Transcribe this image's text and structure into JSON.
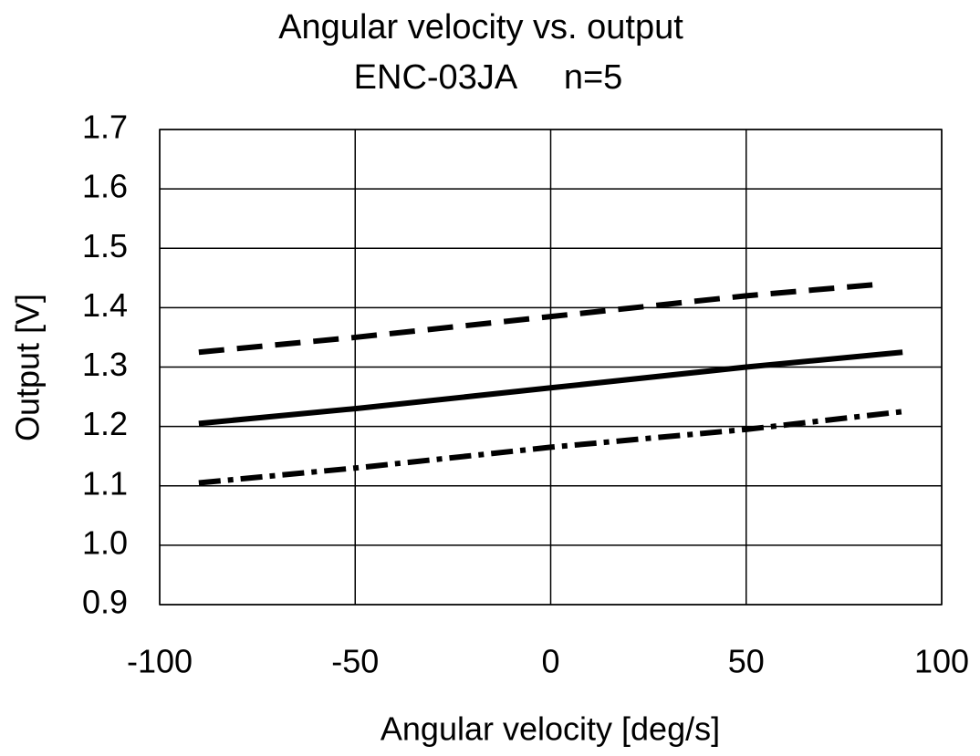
{
  "chart_data": {
    "type": "line",
    "title": "Angular velocity vs. output",
    "subtitle": "ENC-03JA     n=5",
    "x_label": "Angular velocity [deg/s]",
    "y_label": "Output [V]",
    "xlim": [
      -100,
      100
    ],
    "xticks": [
      -100,
      -50,
      0,
      50,
      100
    ],
    "ylim": [
      0.9,
      1.7
    ],
    "yticks": [
      0.9,
      {
        "value": 1,
        "label": "1.0"
      },
      1.1,
      1.2,
      1.3,
      1.4,
      1.5,
      1.6,
      1.7
    ],
    "grid": true,
    "series": [
      {
        "color": "#000000",
        "dash": "dashed",
        "x": [
          -90,
          -50,
          0,
          50,
          85
        ],
        "values": [
          1.325,
          1.35,
          1.385,
          1.42,
          1.44
        ]
      },
      {
        "color": "#000000",
        "dash": "solid",
        "x": [
          -90,
          -50,
          0,
          50,
          90
        ],
        "values": [
          1.205,
          1.23,
          1.265,
          1.3,
          1.325
        ]
      },
      {
        "color": "#000000",
        "dash": "dashdot",
        "x": [
          -90,
          -50,
          0,
          50,
          90
        ],
        "values": [
          1.105,
          1.13,
          1.165,
          1.195,
          1.225
        ]
      }
    ]
  }
}
